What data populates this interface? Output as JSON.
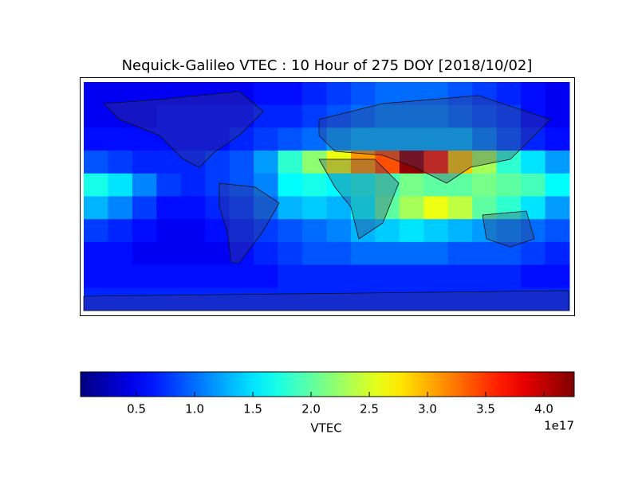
{
  "chart_data": {
    "type": "heatmap",
    "title": "Nequick-Galileo VTEC : 10 Hour of 275 DOY [2018/10/02]",
    "colormap": "jet",
    "values": [
      [
        0.5,
        0.5,
        0.5,
        0.5,
        0.5,
        0.5,
        0.5,
        0.6,
        0.6,
        0.7,
        0.8,
        0.9,
        1.0,
        1.0,
        1.0,
        0.9,
        0.8,
        0.7,
        0.6,
        0.5
      ],
      [
        0.5,
        0.5,
        0.5,
        0.6,
        0.6,
        0.6,
        0.6,
        0.7,
        0.7,
        0.8,
        0.9,
        1.0,
        1.1,
        1.1,
        1.1,
        1.0,
        0.9,
        0.8,
        0.6,
        0.5
      ],
      [
        0.6,
        0.6,
        0.6,
        0.6,
        0.6,
        0.6,
        0.7,
        0.8,
        0.9,
        1.0,
        1.2,
        1.3,
        1.3,
        1.3,
        1.3,
        1.3,
        1.1,
        0.9,
        0.7,
        0.6
      ],
      [
        0.9,
        0.8,
        0.7,
        0.7,
        0.7,
        0.8,
        0.9,
        1.2,
        1.8,
        2.2,
        2.6,
        3.1,
        3.4,
        4.2,
        3.6,
        2.9,
        2.3,
        1.8,
        1.5,
        1.2
      ],
      [
        1.7,
        1.5,
        1.1,
        0.8,
        0.7,
        0.8,
        0.9,
        1.1,
        1.6,
        1.7,
        1.6,
        1.7,
        1.9,
        2.1,
        2.0,
        2.0,
        2.1,
        2.0,
        1.9,
        1.6
      ],
      [
        1.3,
        1.1,
        0.8,
        0.6,
        0.6,
        0.7,
        0.8,
        1.0,
        1.3,
        1.4,
        1.3,
        1.6,
        2.0,
        2.3,
        2.6,
        2.4,
        2.0,
        1.8,
        1.5,
        1.2
      ],
      [
        0.8,
        0.7,
        0.6,
        0.5,
        0.5,
        0.6,
        0.7,
        0.8,
        0.9,
        1.0,
        1.1,
        1.3,
        1.4,
        1.5,
        1.4,
        1.3,
        1.2,
        1.1,
        1.0,
        0.9
      ],
      [
        0.6,
        0.6,
        0.5,
        0.5,
        0.5,
        0.5,
        0.6,
        0.7,
        0.8,
        0.9,
        0.9,
        1.0,
        1.0,
        1.0,
        1.0,
        0.9,
        0.9,
        0.9,
        0.8,
        0.7
      ],
      [
        0.6,
        0.6,
        0.6,
        0.6,
        0.6,
        0.6,
        0.6,
        0.6,
        0.7,
        0.7,
        0.7,
        0.7,
        0.7,
        0.7,
        0.7,
        0.7,
        0.7,
        0.7,
        0.6,
        0.6
      ],
      [
        0.7,
        0.7,
        0.7,
        0.7,
        0.7,
        0.7,
        0.7,
        0.7,
        0.7,
        0.7,
        0.7,
        0.7,
        0.7,
        0.7,
        0.7,
        0.7,
        0.7,
        0.7,
        0.7,
        0.7
      ]
    ],
    "colorbar": {
      "label": "VTEC",
      "offset_label": "1e17",
      "clim": [
        0.02,
        4.26
      ],
      "ticks": [
        0.5,
        {
          "value": 1,
          "label": "1.0"
        },
        1.5,
        {
          "value": 2,
          "label": "2.0"
        },
        2.5,
        {
          "value": 3,
          "label": "3.0"
        },
        3.5,
        {
          "value": 4,
          "label": "4.0"
        }
      ]
    }
  }
}
